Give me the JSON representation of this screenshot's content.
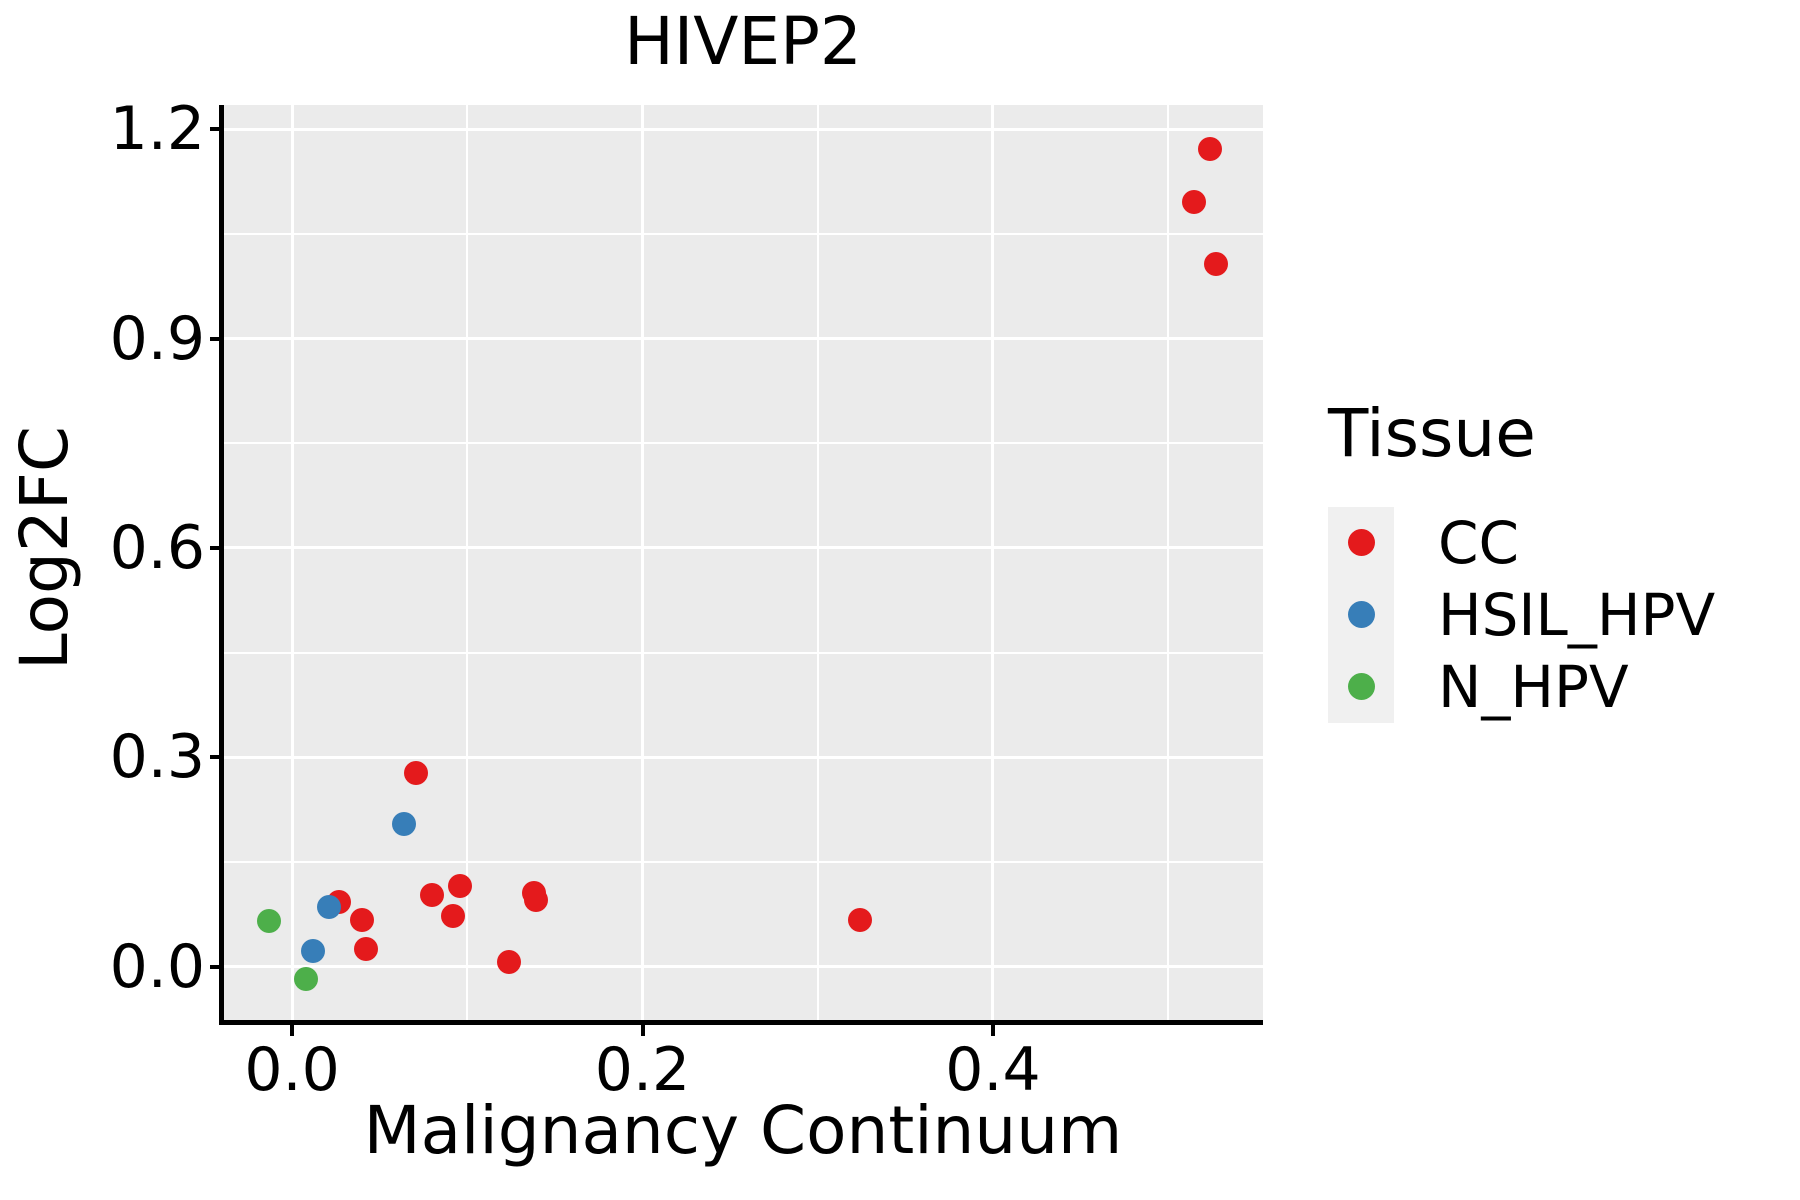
{
  "title": "HIVEP2",
  "colors": {
    "cc": "#e41a1c",
    "hsil_hpv": "#377eb8",
    "n_hpv": "#4daf4a",
    "panel_background": "#ebebeb",
    "gridline": "#ffffff",
    "axis": "#000000",
    "legend_key_background": "#f0f0f0"
  },
  "legend": {
    "title": "Tissue",
    "items": [
      {
        "label": "CC",
        "color": "#e41a1c"
      },
      {
        "label": "HSIL_HPV",
        "color": "#377eb8"
      },
      {
        "label": "N_HPV",
        "color": "#4daf4a"
      }
    ]
  },
  "chart_data": {
    "type": "scatter",
    "title": "HIVEP2",
    "xlabel": "Malignancy Continuum",
    "ylabel": "Log2FC",
    "xlim": [
      -0.0394,
      0.5541
    ],
    "ylim": [
      -0.0765,
      1.2346
    ],
    "grid": "on",
    "legend_position": "right",
    "x_major_ticks": [
      0.0,
      0.2,
      0.4
    ],
    "x_tick_labels": [
      "0.0",
      "0.2",
      "0.4"
    ],
    "x_minor_gridlines": [
      0.1,
      0.3,
      0.5
    ],
    "y_major_ticks": [
      0.0,
      0.3,
      0.6,
      0.9,
      1.2
    ],
    "y_tick_labels": [
      "0.0",
      "0.3",
      "0.6",
      "0.9",
      "1.2"
    ],
    "y_minor_gridlines": [
      0.15,
      0.45,
      0.75,
      1.05
    ],
    "series": [
      {
        "name": "CC",
        "color": "#e41a1c",
        "points": [
          [
            0.524,
            1.172
          ],
          [
            0.515,
            1.096
          ],
          [
            0.527,
            1.007
          ],
          [
            0.071,
            0.277
          ],
          [
            0.027,
            0.093
          ],
          [
            0.04,
            0.067
          ],
          [
            0.042,
            0.025
          ],
          [
            0.08,
            0.102
          ],
          [
            0.096,
            0.116
          ],
          [
            0.092,
            0.072
          ],
          [
            0.138,
            0.105
          ],
          [
            0.139,
            0.096
          ],
          [
            0.124,
            0.006
          ],
          [
            0.324,
            0.067
          ]
        ]
      },
      {
        "name": "HSIL_HPV",
        "color": "#377eb8",
        "points": [
          [
            0.064,
            0.205
          ],
          [
            0.021,
            0.085
          ],
          [
            0.012,
            0.023
          ]
        ]
      },
      {
        "name": "N_HPV",
        "color": "#4daf4a",
        "points": [
          [
            -0.013,
            0.066
          ],
          [
            0.008,
            -0.018
          ]
        ]
      }
    ]
  }
}
